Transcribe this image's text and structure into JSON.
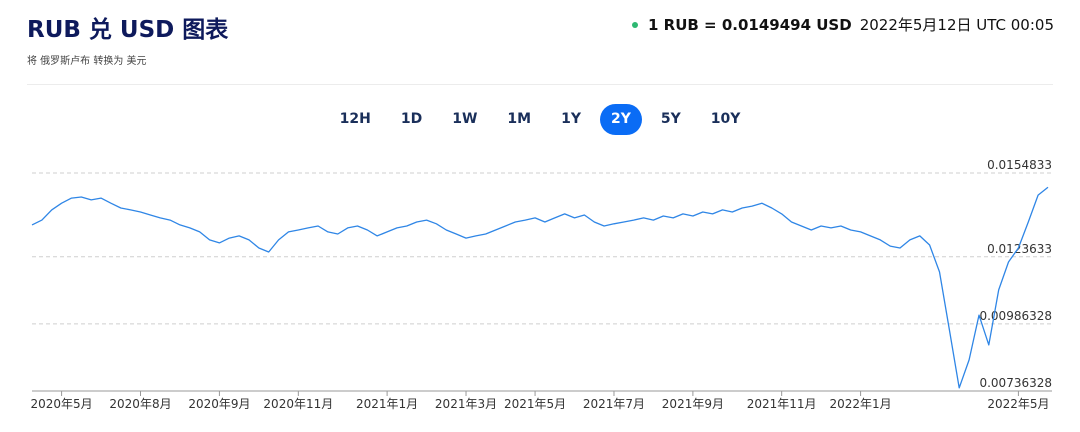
{
  "header": {
    "title": "RUB 兑 USD 图表",
    "subtitle": "将 俄罗斯卢布 转换为 美元",
    "rate": "1 RUB = 0.0149494 USD",
    "timestamp": "2022年5月12日 UTC 00:05"
  },
  "range_buttons": [
    "12H",
    "1D",
    "1W",
    "1M",
    "1Y",
    "2Y",
    "5Y",
    "10Y"
  ],
  "active_range": 5,
  "chart_data": {
    "type": "line",
    "color": "#2f86e6",
    "categories": [
      null,
      null,
      null,
      "2020年5月",
      null,
      null,
      null,
      null,
      null,
      null,
      null,
      "2020年8月",
      null,
      null,
      null,
      null,
      null,
      null,
      null,
      "2020年9月",
      null,
      null,
      null,
      null,
      null,
      null,
      null,
      "2020年11月",
      null,
      null,
      null,
      null,
      null,
      null,
      null,
      null,
      "2021年1月",
      null,
      null,
      null,
      null,
      null,
      null,
      null,
      "2021年3月",
      null,
      null,
      null,
      null,
      null,
      null,
      "2021年5月",
      null,
      null,
      null,
      null,
      null,
      null,
      null,
      "2021年7月",
      null,
      null,
      null,
      null,
      null,
      null,
      null,
      "2021年9月",
      null,
      null,
      null,
      null,
      null,
      null,
      null,
      null,
      "2021年11月",
      null,
      null,
      null,
      null,
      null,
      null,
      null,
      "2022年1月",
      null,
      null,
      null,
      null,
      null,
      null,
      null,
      null,
      null,
      null,
      null,
      null,
      null,
      null,
      null,
      "2022年5月",
      null,
      null,
      null
    ],
    "values": [
      0.01355,
      0.01373,
      0.01411,
      0.01436,
      0.01455,
      0.01459,
      0.01448,
      0.01455,
      0.01436,
      0.01418,
      0.01411,
      0.01403,
      0.01392,
      0.01381,
      0.01373,
      0.01355,
      0.01344,
      0.01329,
      0.01299,
      0.01288,
      0.01306,
      0.01314,
      0.01299,
      0.01269,
      0.01254,
      0.01299,
      0.01329,
      0.01336,
      0.01344,
      0.01351,
      0.01329,
      0.01321,
      0.01344,
      0.01351,
      0.01336,
      0.01314,
      0.01329,
      0.01344,
      0.01351,
      0.01366,
      0.01373,
      0.01359,
      0.01336,
      0.01321,
      0.01306,
      0.01314,
      0.01321,
      0.01336,
      0.01351,
      0.01366,
      0.01373,
      0.01381,
      0.01366,
      0.01381,
      0.01396,
      0.01381,
      0.01392,
      0.01366,
      0.01351,
      0.01359,
      0.01366,
      0.01373,
      0.01381,
      0.01373,
      0.01388,
      0.01381,
      0.01396,
      0.01388,
      0.01403,
      0.01396,
      0.01411,
      0.01403,
      0.01418,
      0.01425,
      0.01436,
      0.01418,
      0.01396,
      0.01366,
      0.01351,
      0.01336,
      0.01351,
      0.01344,
      0.01351,
      0.01336,
      0.01329,
      0.01314,
      0.01299,
      0.01276,
      0.01269,
      0.01299,
      0.01314,
      0.0128,
      0.0118,
      0.00964,
      0.00748,
      0.00852,
      0.01019,
      0.00908,
      0.01113,
      0.01217,
      0.01269,
      0.01366,
      0.01466,
      0.01495
    ],
    "ylim": [
      0.00736328,
      0.0154833
    ],
    "yticks": [
      0.00736328,
      0.00986328,
      0.0123633,
      0.0154833
    ],
    "grid": true
  }
}
